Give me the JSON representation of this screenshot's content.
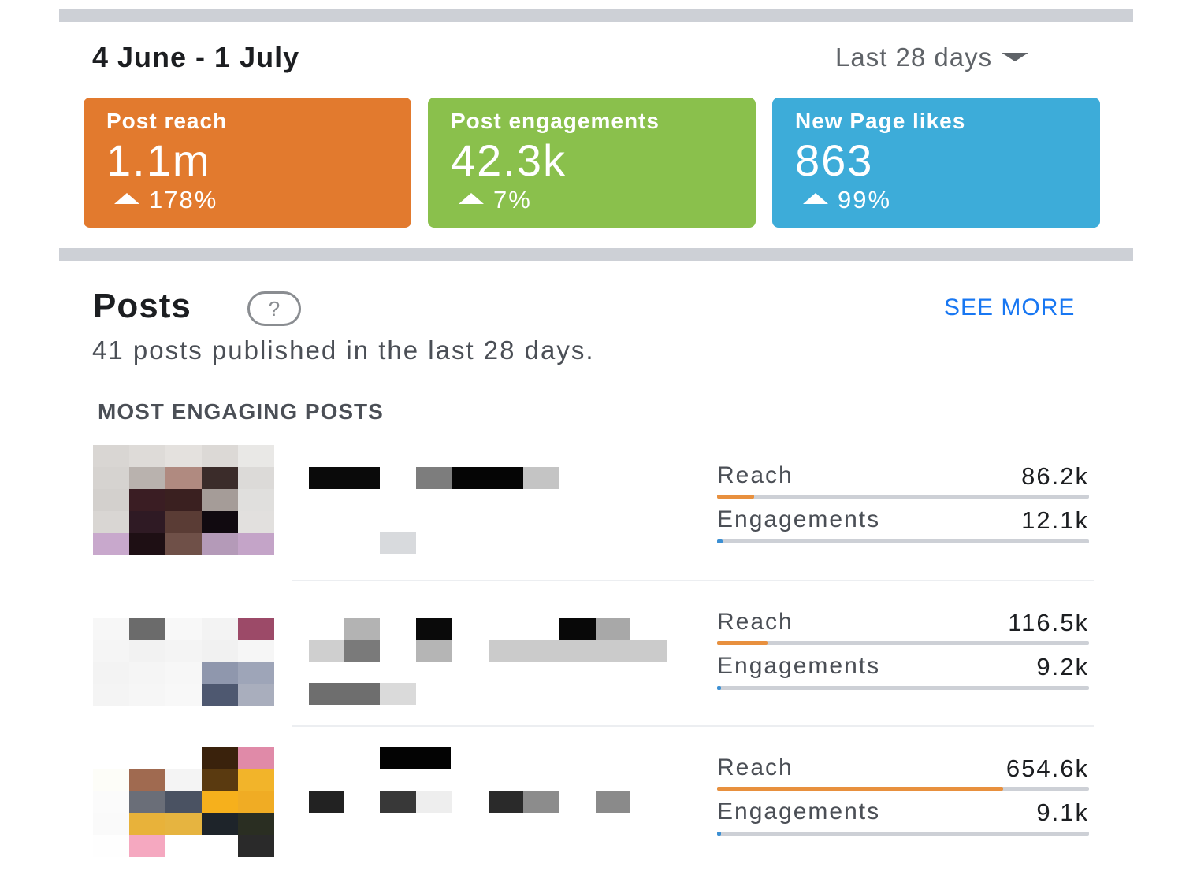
{
  "header": {
    "date_range": "4 June - 1 July",
    "period_select": "Last 28 days",
    "period_caret_icon": "caret-down-icon"
  },
  "cards": [
    {
      "title": "Post reach",
      "value": "1.1m",
      "change": "178%",
      "color": "#e27a2e",
      "trend_icon": "triangle-up-icon"
    },
    {
      "title": "Post engagements",
      "value": "42.3k",
      "change": "7%",
      "color": "#8ac04c",
      "trend_icon": "triangle-up-icon"
    },
    {
      "title": "New Page likes",
      "value": "863",
      "change": "99%",
      "color": "#3dacd9",
      "trend_icon": "triangle-up-icon"
    }
  ],
  "posts": {
    "title": "Posts",
    "help_icon": "question-circle-icon",
    "see_more": "SEE MORE",
    "subtitle": "41 posts published in the last 28 days.",
    "section_label": "MOST ENGAGING POSTS",
    "reach_color": "#e8903e",
    "engagement_color": "#3b8fd3",
    "items": [
      {
        "reach_label": "Reach",
        "reach": "86.2k",
        "reach_fraction": 0.1,
        "engagements_label": "Engagements",
        "engagements": "12.1k",
        "engagement_fraction": 0.015
      },
      {
        "reach_label": "Reach",
        "reach": "116.5k",
        "reach_fraction": 0.135,
        "engagements_label": "Engagements",
        "engagements": "9.2k",
        "engagement_fraction": 0.01
      },
      {
        "reach_label": "Reach",
        "reach": "654.6k",
        "reach_fraction": 0.77,
        "engagements_label": "Engagements",
        "engagements": "9.1k",
        "engagement_fraction": 0.01
      }
    ]
  }
}
